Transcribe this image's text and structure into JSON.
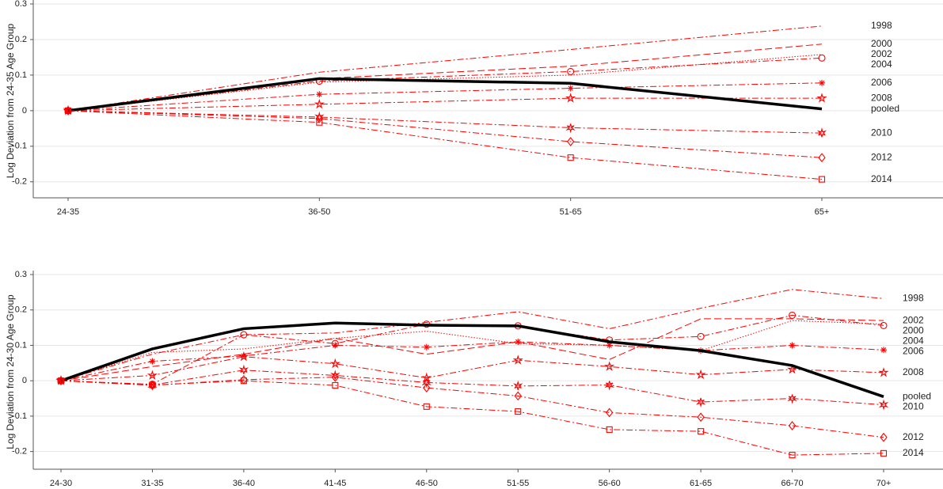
{
  "chart_data": [
    {
      "type": "line",
      "y_label": "Log Deviation from 24-35 Age Group",
      "categories": [
        "24-35",
        "36-50",
        "51-65",
        "65+"
      ],
      "ylim": [
        -0.245,
        0.3
      ],
      "yticks": [
        0.3,
        0.2,
        0.1,
        0,
        -0.1,
        -0.2
      ],
      "grid": true,
      "series": [
        {
          "name": "1998",
          "color": "#ff0000",
          "style": "dashdot",
          "marker": "none",
          "values": [
            0,
            0.108,
            0.172,
            0.238
          ]
        },
        {
          "name": "2000",
          "color": "#ff0000",
          "style": "dashed",
          "marker": "none",
          "values": [
            0,
            0.09,
            0.125,
            0.187
          ]
        },
        {
          "name": "2002",
          "color": "#ff0000",
          "style": "dotted",
          "marker": "none",
          "values": [
            0,
            0.08,
            0.1,
            0.158
          ]
        },
        {
          "name": "2004",
          "color": "#ff0000",
          "style": "dashdot",
          "marker": "circle",
          "values": [
            0,
            0.083,
            0.11,
            0.148
          ]
        },
        {
          "name": "2006",
          "color": "#ff0000",
          "style": "dashdot",
          "marker": "asterisk",
          "values": [
            0,
            0.046,
            0.063,
            0.078
          ]
        },
        {
          "name": "2008",
          "color": "#ff0000",
          "style": "dashdot",
          "marker": "star",
          "values": [
            0,
            0.018,
            0.035,
            0.035
          ]
        },
        {
          "name": "pooled",
          "color": "#000000",
          "style": "solid",
          "marker": "none",
          "values": [
            0,
            0.09,
            0.077,
            0.005
          ]
        },
        {
          "name": "2010",
          "color": "#ff0000",
          "style": "dashdot",
          "marker": "star6",
          "values": [
            0,
            -0.018,
            -0.048,
            -0.063
          ]
        },
        {
          "name": "2012",
          "color": "#ff0000",
          "style": "dashdot",
          "marker": "diamond",
          "values": [
            0,
            -0.022,
            -0.087,
            -0.132
          ]
        },
        {
          "name": "2014",
          "color": "#ff0000",
          "style": "dashdot",
          "marker": "square",
          "values": [
            0,
            -0.033,
            -0.132,
            -0.193
          ]
        }
      ]
    },
    {
      "type": "line",
      "y_label": "Log Deviation from 24-30 Age Group",
      "categories": [
        "24-30",
        "31-35",
        "36-40",
        "41-45",
        "46-50",
        "51-55",
        "56-60",
        "61-65",
        "66-70",
        "70+"
      ],
      "ylim": [
        -0.25,
        0.3
      ],
      "yticks": [
        0.3,
        0.2,
        0.1,
        0,
        -0.1,
        -0.2
      ],
      "grid": true,
      "series": [
        {
          "name": "1998",
          "color": "#ff0000",
          "style": "dashdot",
          "marker": "none",
          "values": [
            0,
            0.075,
            0.13,
            0.135,
            0.165,
            0.195,
            0.147,
            0.205,
            0.258,
            0.232
          ]
        },
        {
          "name": "2002",
          "color": "#ff0000",
          "style": "dashed",
          "marker": "none",
          "values": [
            0,
            0.04,
            0.075,
            0.12,
            0.075,
            0.11,
            0.06,
            0.175,
            0.175,
            0.17
          ]
        },
        {
          "name": "2000",
          "color": "#ff0000",
          "style": "dotted",
          "marker": "none",
          "values": [
            0,
            0.08,
            0.09,
            0.12,
            0.14,
            0.105,
            0.1,
            0.085,
            0.17,
            0.16
          ]
        },
        {
          "name": "2004",
          "color": "#ff0000",
          "style": "dashdot",
          "marker": "circle",
          "values": [
            0,
            -0.01,
            0.13,
            0.105,
            0.16,
            0.155,
            0.115,
            0.125,
            0.185,
            0.156
          ]
        },
        {
          "name": "2006",
          "color": "#ff0000",
          "style": "dashdot",
          "marker": "asterisk",
          "values": [
            0,
            0.055,
            0.07,
            0.1,
            0.095,
            0.11,
            0.1,
            0.085,
            0.1,
            0.087
          ]
        },
        {
          "name": "2008",
          "color": "#ff0000",
          "style": "dashdot",
          "marker": "star",
          "values": [
            0,
            0.015,
            0.068,
            0.048,
            0.008,
            0.058,
            0.04,
            0.017,
            0.032,
            0.023
          ]
        },
        {
          "name": "pooled",
          "color": "#000000",
          "style": "solid",
          "marker": "none",
          "values": [
            0,
            0.09,
            0.147,
            0.163,
            0.157,
            0.155,
            0.11,
            0.085,
            0.043,
            -0.045
          ]
        },
        {
          "name": "2010",
          "color": "#ff0000",
          "style": "dashdot",
          "marker": "star6",
          "values": [
            0,
            -0.012,
            0.03,
            0.015,
            -0.005,
            -0.015,
            -0.012,
            -0.06,
            -0.05,
            -0.068
          ]
        },
        {
          "name": "2012",
          "color": "#ff0000",
          "style": "dashdot",
          "marker": "diamond",
          "values": [
            0,
            -0.013,
            0.003,
            0.01,
            -0.02,
            -0.043,
            -0.09,
            -0.103,
            -0.127,
            -0.16
          ]
        },
        {
          "name": "2014",
          "color": "#ff0000",
          "style": "dashdot",
          "marker": "square",
          "values": [
            0,
            -0.012,
            0,
            -0.013,
            -0.073,
            -0.087,
            -0.138,
            -0.143,
            -0.21,
            -0.205
          ]
        }
      ]
    }
  ]
}
